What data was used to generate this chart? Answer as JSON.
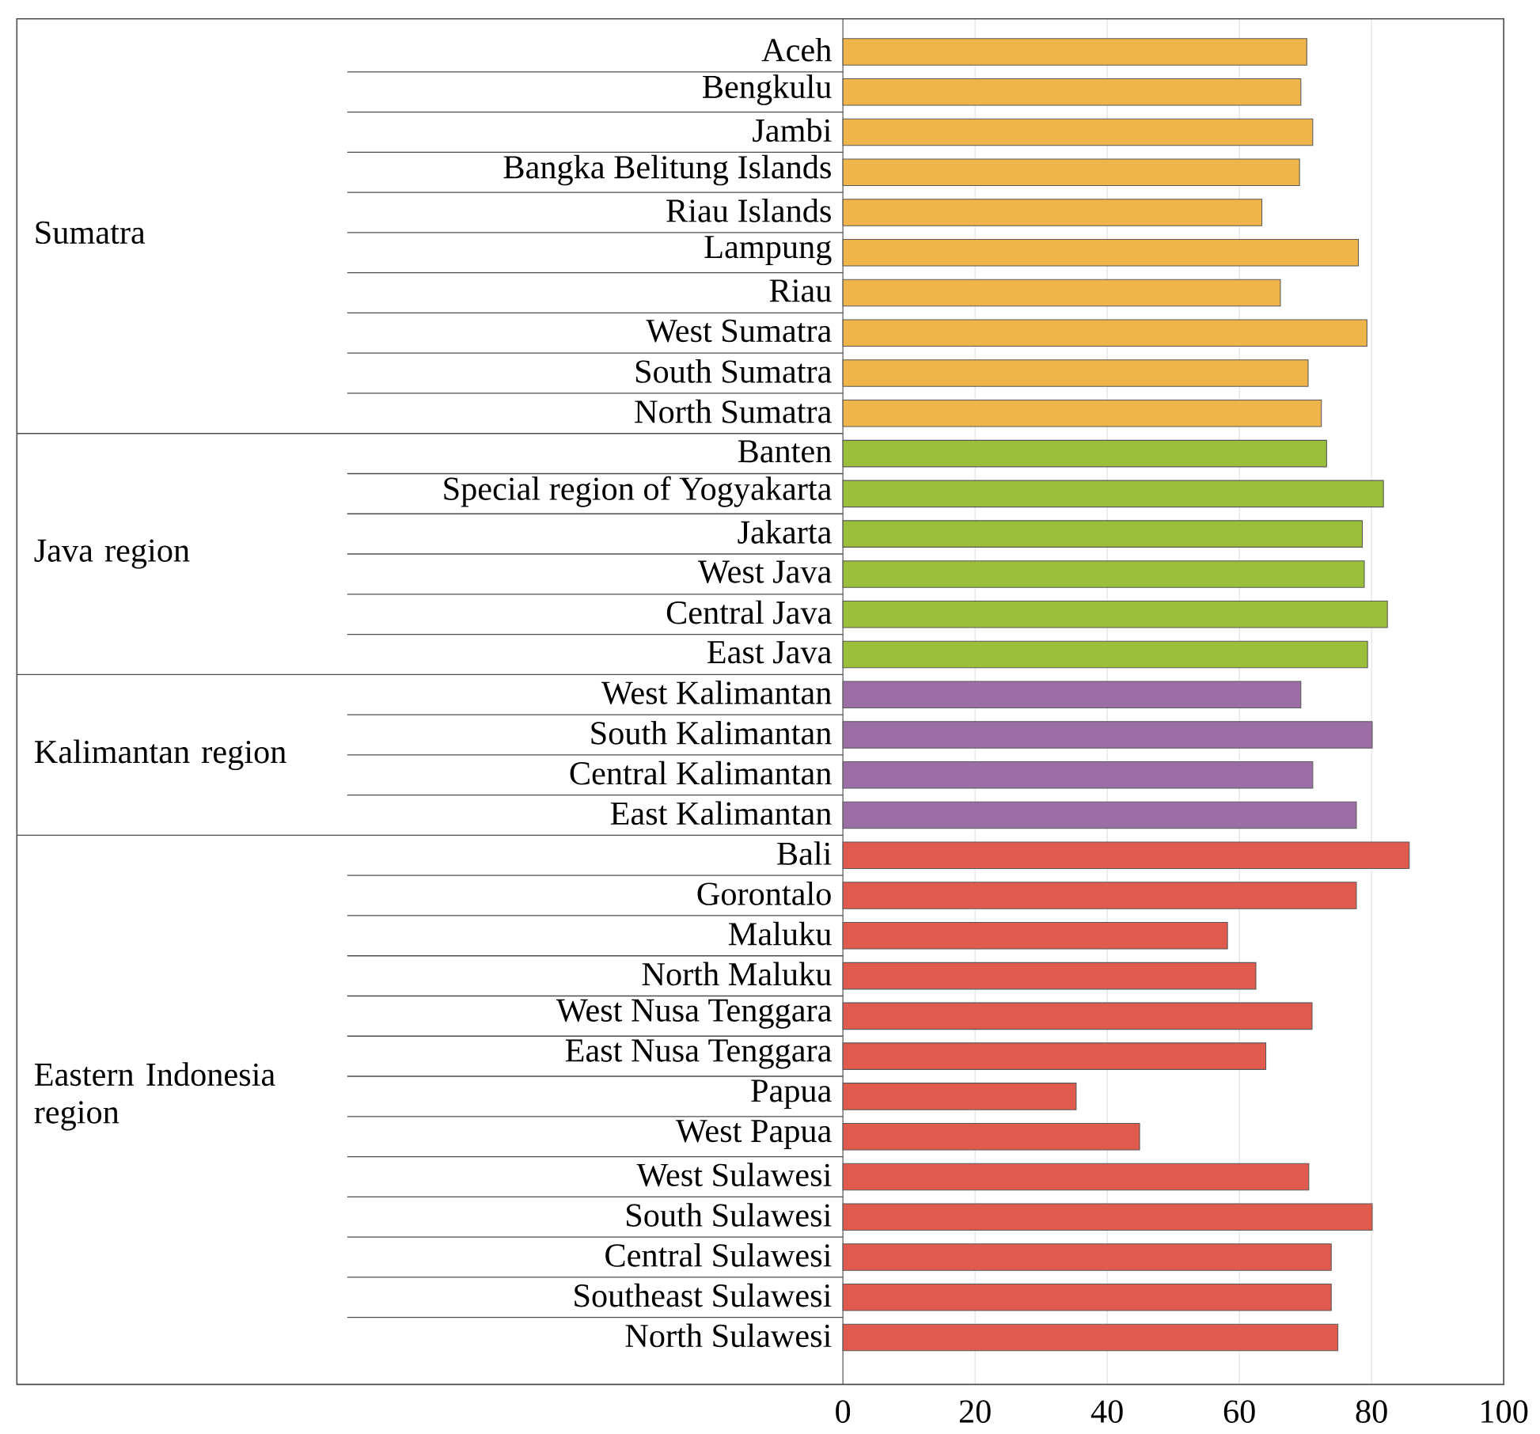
{
  "chart_data": {
    "type": "bar",
    "orientation": "horizontal",
    "categories": [
      "Aceh",
      "Bengkulu",
      "Jambi",
      "Bangka Belitung Islands",
      "Riau Islands",
      "Lampung",
      "Riau",
      "West Sumatra",
      "South Sumatra",
      "North Sumatra",
      "Banten",
      "Special region of Yogyakarta",
      "Jakarta",
      "West Java",
      "Central Java",
      "East Java",
      "West Kalimantan",
      "South Kalimantan",
      "Central Kalimantan",
      "East Kalimantan",
      "Bali",
      "Gorontalo",
      "Maluku",
      "North Maluku",
      "West Nusa Tenggara",
      "East Nusa Tenggara",
      "Papua",
      "West Papua",
      "West Sulawesi",
      "South Sulawesi",
      "Central Sulawesi",
      "Southeast Sulawesi",
      "North Sulawesi"
    ],
    "values": [
      70.2,
      69.3,
      71.1,
      69.1,
      63.4,
      78.0,
      66.2,
      79.3,
      70.4,
      72.4,
      73.2,
      81.8,
      78.6,
      78.9,
      82.4,
      79.4,
      69.3,
      80.1,
      71.1,
      77.7,
      85.7,
      77.7,
      58.2,
      62.5,
      71.0,
      64.0,
      35.3,
      44.9,
      70.5,
      80.1,
      73.9,
      73.9,
      74.9
    ],
    "colors": [
      "#f0b54a",
      "#f0b54a",
      "#f0b54a",
      "#f0b54a",
      "#f0b54a",
      "#f0b54a",
      "#f0b54a",
      "#f0b54a",
      "#f0b54a",
      "#f0b54a",
      "#9bbe3b",
      "#9bbe3b",
      "#9bbe3b",
      "#9bbe3b",
      "#9bbe3b",
      "#9bbe3b",
      "#9c6ea6",
      "#9c6ea6",
      "#9c6ea6",
      "#9c6ea6",
      "#e05b4e",
      "#e05b4e",
      "#e05b4e",
      "#e05b4e",
      "#e05b4e",
      "#e05b4e",
      "#e05b4e",
      "#e05b4e",
      "#e05b4e",
      "#e05b4e",
      "#e05b4e",
      "#e05b4e",
      "#e05b4e"
    ],
    "annotations": [
      "Sumatra",
      "Java region",
      "Kalimantan region",
      "Eastern Indonesia region"
    ],
    "xlim": [
      0,
      100
    ],
    "xticks": [
      0,
      20,
      40,
      60,
      80,
      100
    ],
    "grid": "x"
  }
}
